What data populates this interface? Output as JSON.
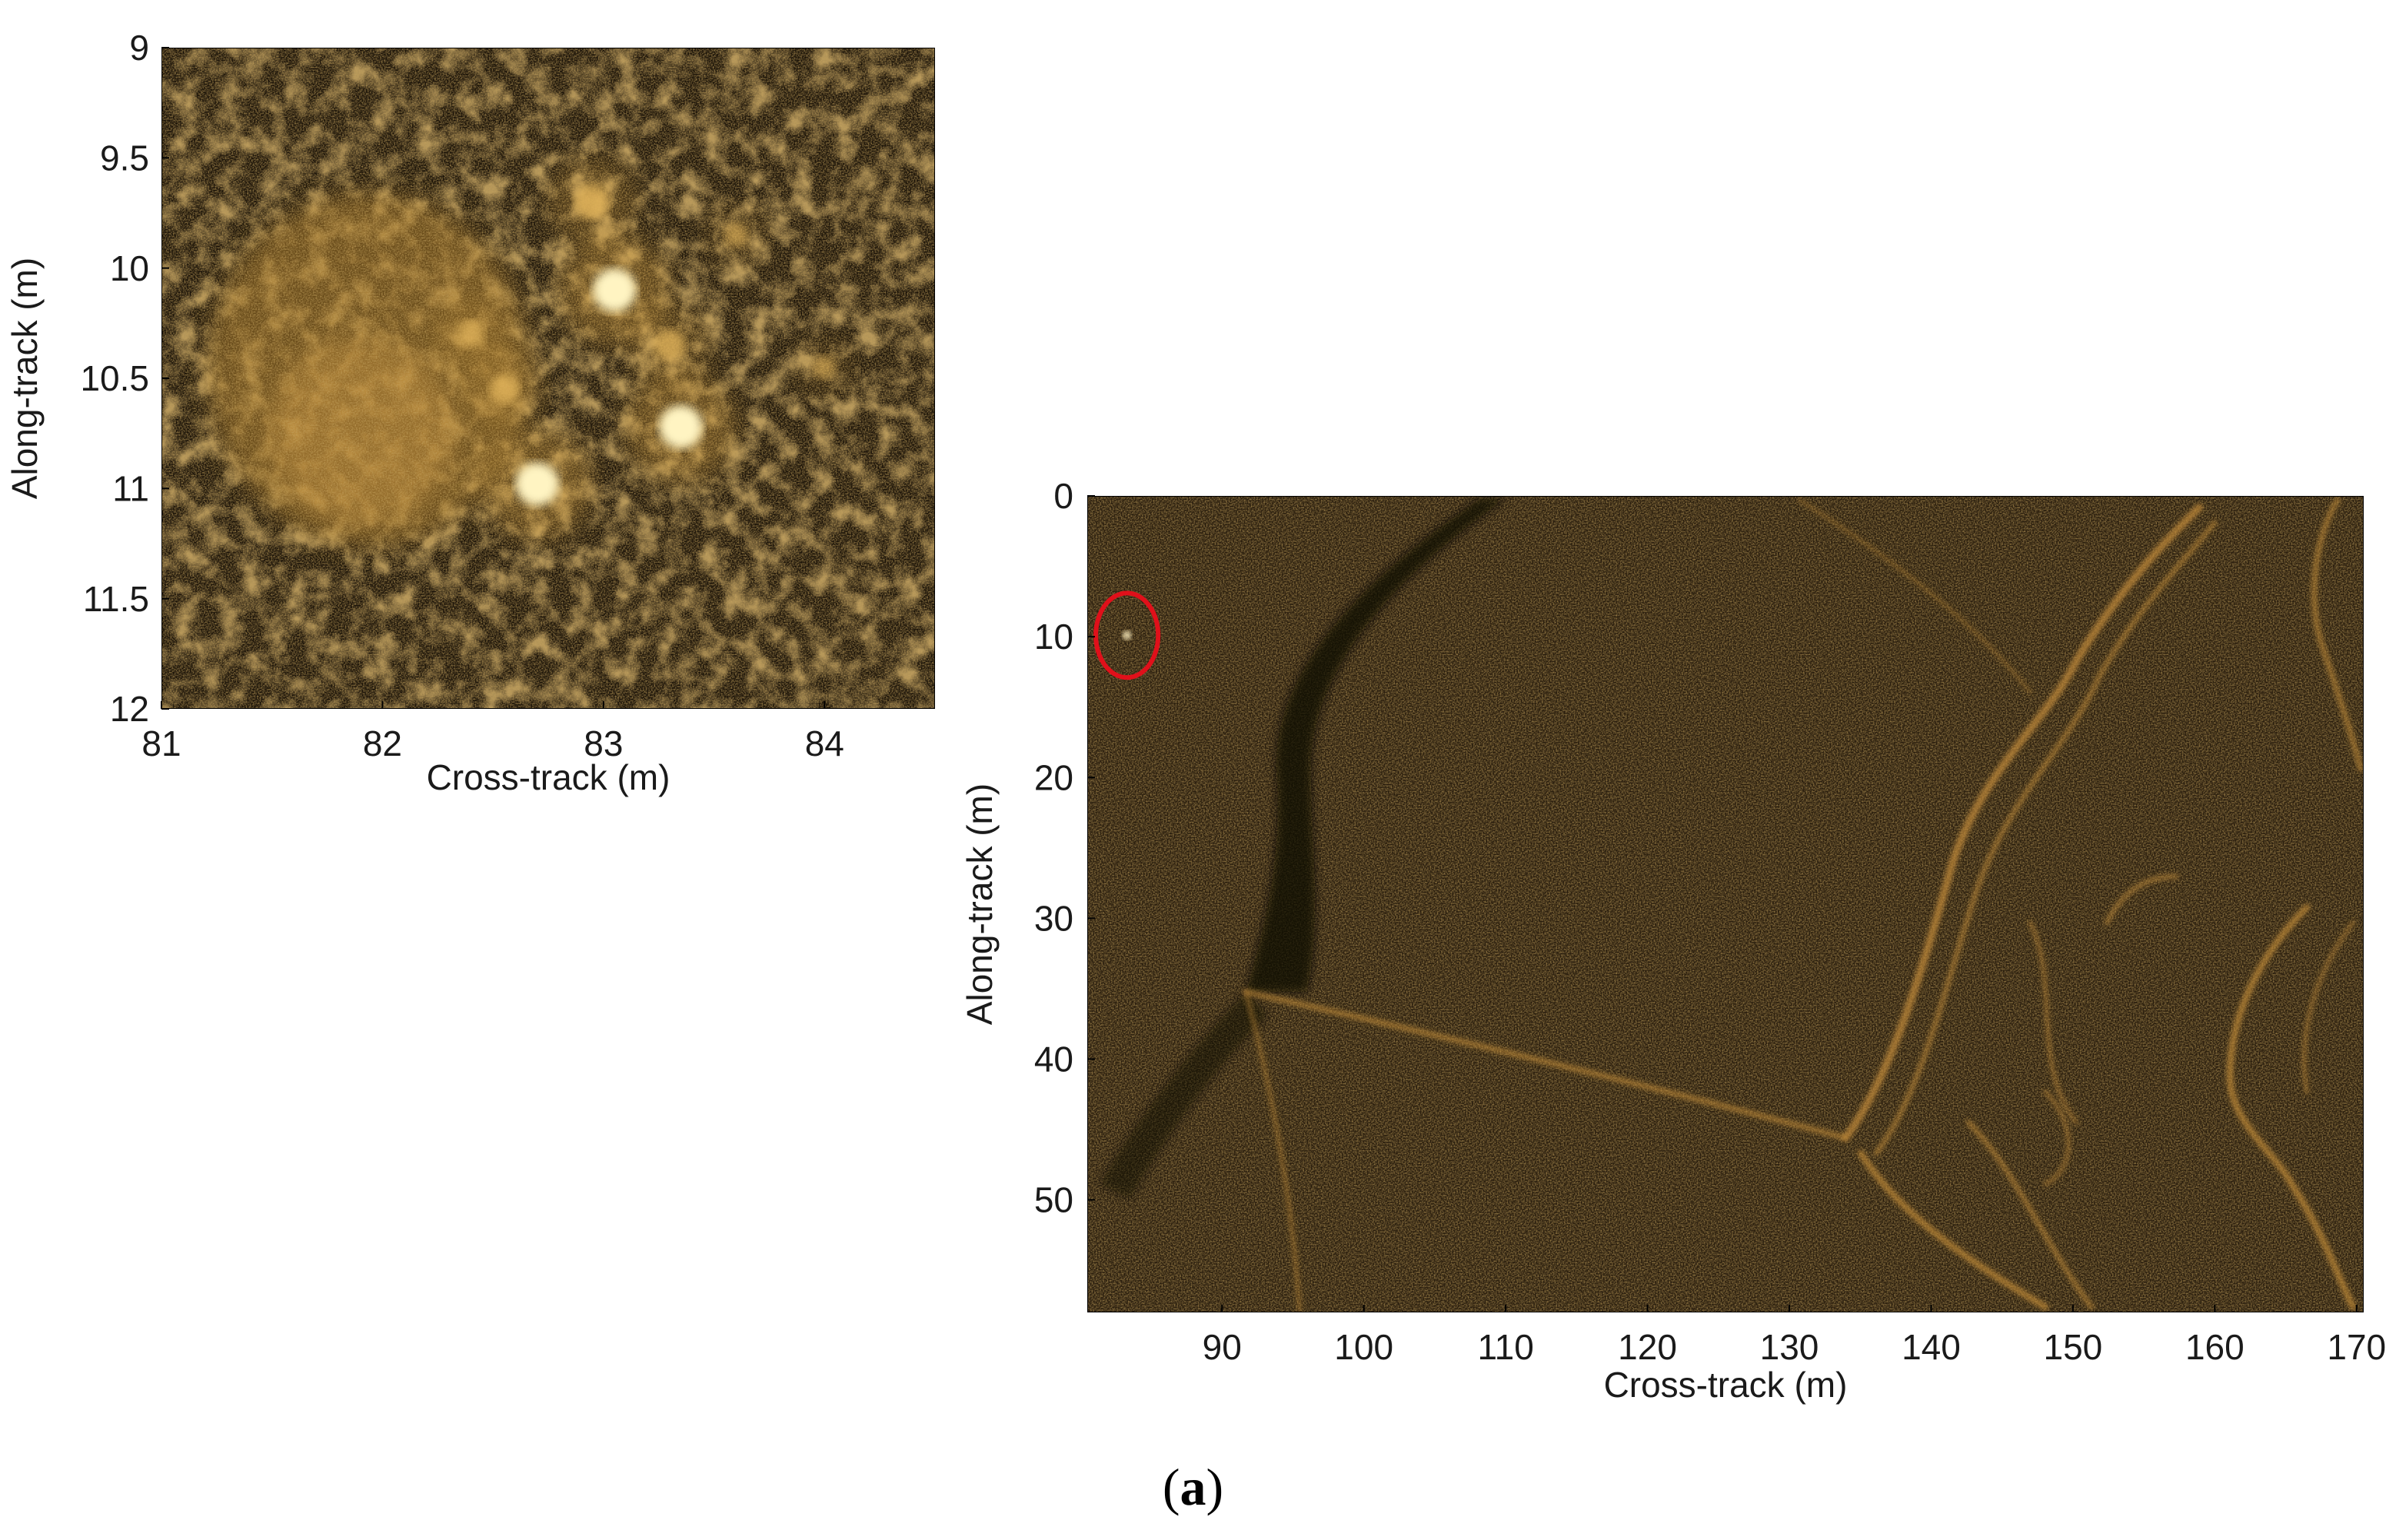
{
  "figure": {
    "caption_open": "(",
    "caption_letter": "a",
    "caption_close": ")"
  },
  "chart_data": [
    {
      "type": "heatmap",
      "name": "zoomed-sonar-image",
      "title": "",
      "xlabel": "Cross-track (m)",
      "ylabel": "Along-track (m)",
      "xlim": [
        81,
        84.5
      ],
      "ylim": [
        12,
        9
      ],
      "y_axis_inverted": true,
      "x_ticks": [
        81,
        82,
        83,
        84
      ],
      "y_ticks": [
        9,
        9.5,
        10,
        10.5,
        11,
        11.5,
        12
      ],
      "colormap": [
        "#0d0a05",
        "#3b2a10",
        "#8a6425",
        "#d8a646",
        "#fff2b0"
      ],
      "grid": false,
      "highlights": [
        {
          "x": 83.05,
          "y": 10.1,
          "intensity": 1.0
        },
        {
          "x": 83.35,
          "y": 10.72,
          "intensity": 1.0
        },
        {
          "x": 82.7,
          "y": 10.98,
          "intensity": 1.0
        },
        {
          "x": 82.95,
          "y": 9.7,
          "intensity": 0.7
        },
        {
          "x": 83.3,
          "y": 10.35,
          "intensity": 0.6
        },
        {
          "x": 82.55,
          "y": 10.55,
          "intensity": 0.55
        },
        {
          "x": 82.4,
          "y": 10.3,
          "intensity": 0.45
        },
        {
          "x": 83.6,
          "y": 9.85,
          "intensity": 0.35
        },
        {
          "x": 84.0,
          "y": 10.45,
          "intensity": 0.3
        }
      ],
      "diffuse_region": {
        "x_center": 81.95,
        "y_center": 10.5,
        "intensity": 0.45
      }
    },
    {
      "type": "heatmap",
      "name": "full-sonar-image",
      "title": "",
      "xlabel": "Cross-track (m)",
      "ylabel": "Along-track (m)",
      "xlim": [
        80.5,
        170.5
      ],
      "ylim": [
        58,
        0
      ],
      "y_axis_inverted": true,
      "x_ticks": [
        90,
        100,
        110,
        120,
        130,
        140,
        150,
        160,
        170
      ],
      "y_ticks": [
        0,
        10,
        20,
        30,
        40,
        50
      ],
      "colormap": [
        "#0d0a05",
        "#3b2a10",
        "#8a6425",
        "#d8a646",
        "#fff2b0"
      ],
      "grid": false,
      "annotation": {
        "shape": "ellipse",
        "color": "#e0101a",
        "x": 83.3,
        "y": 9.9,
        "rx": 2.2,
        "ry": 3.0
      }
    }
  ]
}
